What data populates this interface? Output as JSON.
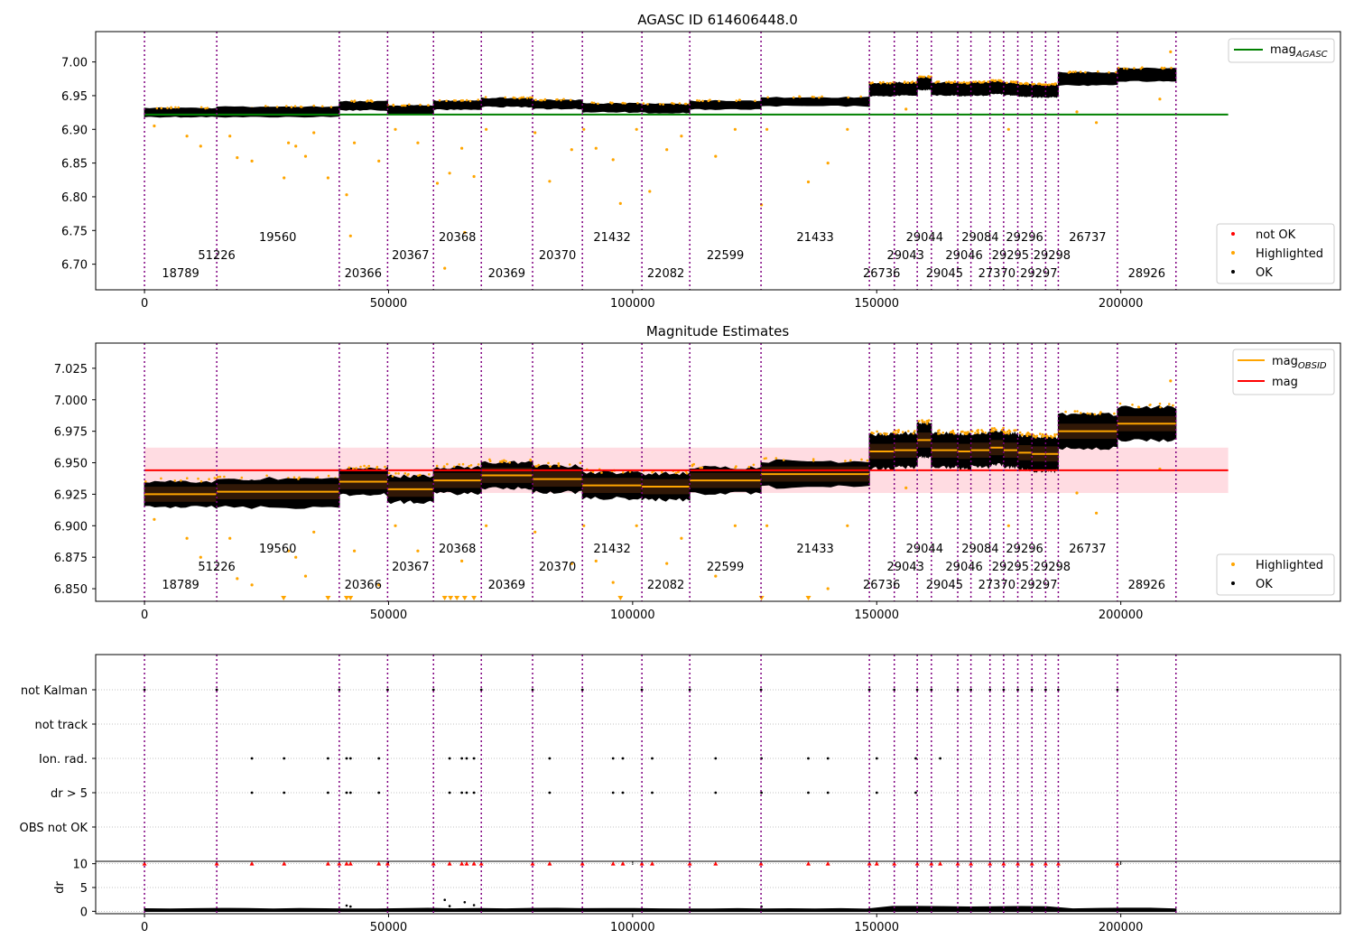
{
  "chart_data": [
    {
      "type": "scatter",
      "title": "AGASC ID 614606448.0",
      "xlim": [
        -10000,
        245000
      ],
      "ylim": [
        6.662,
        7.045
      ],
      "x_ticks": [
        0,
        50000,
        100000,
        150000,
        200000
      ],
      "y_ticks": [
        6.7,
        6.75,
        6.8,
        6.85,
        6.9,
        6.95,
        7.0
      ],
      "grid": false,
      "legends": [
        {
          "placement": "upper-right",
          "entries": [
            {
              "label": "mag",
              "sub": "AGASC",
              "kind": "line",
              "color": "#008000"
            }
          ]
        },
        {
          "placement": "lower-right",
          "entries": [
            {
              "label": "not OK",
              "kind": "dot",
              "color": "#ff0000"
            },
            {
              "label": "Highlighted",
              "kind": "dot",
              "color": "#ffa500"
            },
            {
              "label": "OK",
              "kind": "dot",
              "color": "#000000"
            }
          ]
        }
      ],
      "reference_line": {
        "name": "mag_AGASC",
        "y": 6.922,
        "x_range": [
          0,
          222000
        ],
        "color": "#008000"
      },
      "obsid_segments": [
        {
          "obsid": "18789",
          "start": 0,
          "end": 14800,
          "mag": 6.925
        },
        {
          "obsid": "51226",
          "start": 14800,
          "end": 39900,
          "mag": 6.925
        },
        {
          "obsid": "19560",
          "start": 14800,
          "end": 39900,
          "mag": 6.927
        },
        {
          "obsid": "20366",
          "start": 39900,
          "end": 49800,
          "mag": 6.935
        },
        {
          "obsid": "20367",
          "start": 49800,
          "end": 59200,
          "mag": 6.929
        },
        {
          "obsid": "20368",
          "start": 59200,
          "end": 69000,
          "mag": 6.936
        },
        {
          "obsid": "20369",
          "start": 69000,
          "end": 79500,
          "mag": 6.94
        },
        {
          "obsid": "20370",
          "start": 79500,
          "end": 89700,
          "mag": 6.937
        },
        {
          "obsid": "21432",
          "start": 89700,
          "end": 101900,
          "mag": 6.932
        },
        {
          "obsid": "22082",
          "start": 101900,
          "end": 111700,
          "mag": 6.931
        },
        {
          "obsid": "22599",
          "start": 111700,
          "end": 126300,
          "mag": 6.936
        },
        {
          "obsid": "21433",
          "start": 126300,
          "end": 148500,
          "mag": 6.941
        },
        {
          "obsid": "26736",
          "start": 148500,
          "end": 153600,
          "mag": 6.959
        },
        {
          "obsid": "29043",
          "start": 153600,
          "end": 158300,
          "mag": 6.96
        },
        {
          "obsid": "29044",
          "start": 158300,
          "end": 161200,
          "mag": 6.968
        },
        {
          "obsid": "29045",
          "start": 161200,
          "end": 166600,
          "mag": 6.96
        },
        {
          "obsid": "29046",
          "start": 166600,
          "end": 169300,
          "mag": 6.959
        },
        {
          "obsid": "29084",
          "start": 169300,
          "end": 173200,
          "mag": 6.96
        },
        {
          "obsid": "27370",
          "start": 173200,
          "end": 176000,
          "mag": 6.962
        },
        {
          "obsid": "29295",
          "start": 176000,
          "end": 178900,
          "mag": 6.96
        },
        {
          "obsid": "29296",
          "start": 178900,
          "end": 181800,
          "mag": 6.958
        },
        {
          "obsid": "29297",
          "start": 181800,
          "end": 184600,
          "mag": 6.957
        },
        {
          "obsid": "29298",
          "start": 184600,
          "end": 187200,
          "mag": 6.957
        },
        {
          "obsid": "26737",
          "start": 187200,
          "end": 199300,
          "mag": 6.975
        },
        {
          "obsid": "28926",
          "start": 199300,
          "end": 211300,
          "mag": 6.981
        }
      ],
      "obsid_labels": [
        {
          "text": "18789",
          "x": 7400,
          "row": 0
        },
        {
          "text": "51226",
          "x": 14800,
          "row": 1
        },
        {
          "text": "19560",
          "x": 27300,
          "row": 2
        },
        {
          "text": "20366",
          "x": 44800,
          "row": 0
        },
        {
          "text": "20367",
          "x": 54500,
          "row": 1
        },
        {
          "text": "20368",
          "x": 64100,
          "row": 2
        },
        {
          "text": "20369",
          "x": 74200,
          "row": 0
        },
        {
          "text": "20370",
          "x": 84600,
          "row": 1
        },
        {
          "text": "21432",
          "x": 95800,
          "row": 2
        },
        {
          "text": "22082",
          "x": 106800,
          "row": 0
        },
        {
          "text": "22599",
          "x": 119000,
          "row": 1
        },
        {
          "text": "21433",
          "x": 137400,
          "row": 2
        },
        {
          "text": "26736",
          "x": 151000,
          "row": 0
        },
        {
          "text": "29043",
          "x": 155900,
          "row": 1
        },
        {
          "text": "29044",
          "x": 159800,
          "row": 2
        },
        {
          "text": "29045",
          "x": 163900,
          "row": 0
        },
        {
          "text": "29046",
          "x": 167900,
          "row": 1
        },
        {
          "text": "29084",
          "x": 171200,
          "row": 2
        },
        {
          "text": "27370",
          "x": 174600,
          "row": 0
        },
        {
          "text": "29295",
          "x": 177400,
          "row": 1
        },
        {
          "text": "29296",
          "x": 180300,
          "row": 2
        },
        {
          "text": "29297",
          "x": 183200,
          "row": 0
        },
        {
          "text": "29298",
          "x": 185900,
          "row": 1
        },
        {
          "text": "26737",
          "x": 193200,
          "row": 2
        },
        {
          "text": "28926",
          "x": 205300,
          "row": 0
        }
      ],
      "obsid_boundaries": [
        0,
        14800,
        39900,
        49800,
        59200,
        69000,
        79500,
        89700,
        101900,
        111700,
        126300,
        148500,
        153600,
        158300,
        161200,
        166600,
        169300,
        173200,
        176000,
        178900,
        181800,
        184600,
        187200,
        199300,
        211300
      ],
      "highlighted_points": [
        [
          2000,
          6.905
        ],
        [
          8700,
          6.89
        ],
        [
          11500,
          6.875
        ],
        [
          17500,
          6.89
        ],
        [
          19000,
          6.858
        ],
        [
          22000,
          6.853
        ],
        [
          28600,
          6.828
        ],
        [
          29500,
          6.88
        ],
        [
          31000,
          6.875
        ],
        [
          33000,
          6.86
        ],
        [
          34700,
          6.895
        ],
        [
          37600,
          6.828
        ],
        [
          41400,
          6.803
        ],
        [
          42200,
          6.742
        ],
        [
          43000,
          6.88
        ],
        [
          48000,
          6.853
        ],
        [
          51400,
          6.9
        ],
        [
          56000,
          6.88
        ],
        [
          60000,
          6.82
        ],
        [
          61500,
          6.694
        ],
        [
          62500,
          6.835
        ],
        [
          65000,
          6.872
        ],
        [
          65600,
          6.747
        ],
        [
          67500,
          6.83
        ],
        [
          70000,
          6.9
        ],
        [
          80000,
          6.895
        ],
        [
          83000,
          6.823
        ],
        [
          87500,
          6.87
        ],
        [
          90000,
          6.9
        ],
        [
          92500,
          6.872
        ],
        [
          96000,
          6.855
        ],
        [
          97500,
          6.79
        ],
        [
          100800,
          6.9
        ],
        [
          103500,
          6.808
        ],
        [
          107000,
          6.87
        ],
        [
          110000,
          6.89
        ],
        [
          117000,
          6.86
        ],
        [
          121000,
          6.9
        ],
        [
          126400,
          6.788
        ],
        [
          127500,
          6.9
        ],
        [
          136000,
          6.822
        ],
        [
          140000,
          6.85
        ],
        [
          144000,
          6.9
        ],
        [
          156000,
          6.93
        ],
        [
          177000,
          6.9
        ],
        [
          191000,
          6.926
        ],
        [
          195000,
          6.91
        ],
        [
          208000,
          6.945
        ],
        [
          210200,
          7.015
        ]
      ]
    },
    {
      "type": "scatter",
      "title": "Magnitude Estimates",
      "xlim": [
        -10000,
        245000
      ],
      "ylim": [
        6.84,
        7.045
      ],
      "x_ticks": [
        0,
        50000,
        100000,
        150000,
        200000
      ],
      "y_ticks": [
        6.85,
        6.875,
        6.9,
        6.925,
        6.95,
        6.975,
        7.0,
        7.025
      ],
      "grid": false,
      "legends": [
        {
          "placement": "upper-right",
          "entries": [
            {
              "label": "mag",
              "sub": "OBSID",
              "kind": "line",
              "color": "#ffa500"
            },
            {
              "label": "mag",
              "kind": "line",
              "color": "#ff0000"
            }
          ]
        },
        {
          "placement": "lower-right",
          "entries": [
            {
              "label": "Highlighted",
              "kind": "dot",
              "color": "#ffa500"
            },
            {
              "label": "OK",
              "kind": "dot",
              "color": "#000000"
            }
          ]
        }
      ],
      "mean_mag": {
        "y": 6.944,
        "band": [
          6.926,
          6.962
        ],
        "x_range": [
          0,
          222000
        ],
        "color": "#ff0000"
      },
      "below_range_markers_x": [
        28500,
        37600,
        41400,
        42200,
        61500,
        62700,
        64000,
        65600,
        67500,
        97500,
        126400,
        136000
      ]
    },
    {
      "type": "scatter",
      "title": "",
      "xlim": [
        -10000,
        245000
      ],
      "x_ticks": [
        0,
        50000,
        100000,
        150000,
        200000
      ],
      "flag_categories": [
        "not Kalman",
        "not track",
        "Ion. rad.",
        "dr > 5",
        "OBS not OK"
      ],
      "flags": {
        "not Kalman": [
          0,
          14800,
          39900,
          49800,
          59200,
          69000,
          79500,
          89700,
          101900,
          111700,
          126300,
          148500,
          153600,
          158300,
          161200,
          166600,
          169300,
          173200,
          176000,
          178900,
          181800,
          184600,
          187200,
          199300
        ],
        "not track": [],
        "Ion. rad.": [
          22000,
          28600,
          37600,
          41400,
          42200,
          48000,
          62500,
          65000,
          66000,
          67500,
          83000,
          96000,
          98000,
          104000,
          117000,
          126400,
          136000,
          140000,
          150000,
          158000,
          163000
        ],
        "dr > 5": [
          22000,
          28600,
          37600,
          41400,
          42200,
          48000,
          62500,
          65000,
          66000,
          67500,
          83000,
          96000,
          98000,
          104000,
          117000,
          126400,
          136000,
          140000,
          150000,
          158000
        ],
        "OBS not OK": []
      },
      "grid": true
    },
    {
      "type": "scatter",
      "title": "",
      "xlim": [
        -10000,
        245000
      ],
      "ylim": [
        -0.5,
        10.5
      ],
      "ylabel": "dr",
      "x_ticks": [
        0,
        50000,
        100000,
        150000,
        200000
      ],
      "x_tick_labels": [
        "0",
        "50000",
        "100000",
        "150000",
        "200000"
      ],
      "y_ticks": [
        0,
        5,
        10
      ],
      "grid": true,
      "clipped_at_10_x": [
        0,
        14800,
        22000,
        28600,
        37600,
        39900,
        41400,
        42200,
        48000,
        49800,
        59200,
        62500,
        65000,
        66000,
        67500,
        69000,
        79500,
        83000,
        89700,
        96000,
        98000,
        101900,
        104000,
        111700,
        117000,
        126300,
        136000,
        140000,
        148500,
        150000,
        153600,
        158300,
        161200,
        163000,
        166600,
        169300,
        173200,
        176000,
        178900,
        181800,
        184600,
        187200,
        199300
      ],
      "outliers": [
        [
          41400,
          1.2
        ],
        [
          42200,
          1.0
        ],
        [
          61500,
          2.4
        ],
        [
          62500,
          1.1
        ],
        [
          65600,
          1.9
        ],
        [
          67500,
          1.3
        ],
        [
          126400,
          1.0
        ]
      ]
    }
  ]
}
